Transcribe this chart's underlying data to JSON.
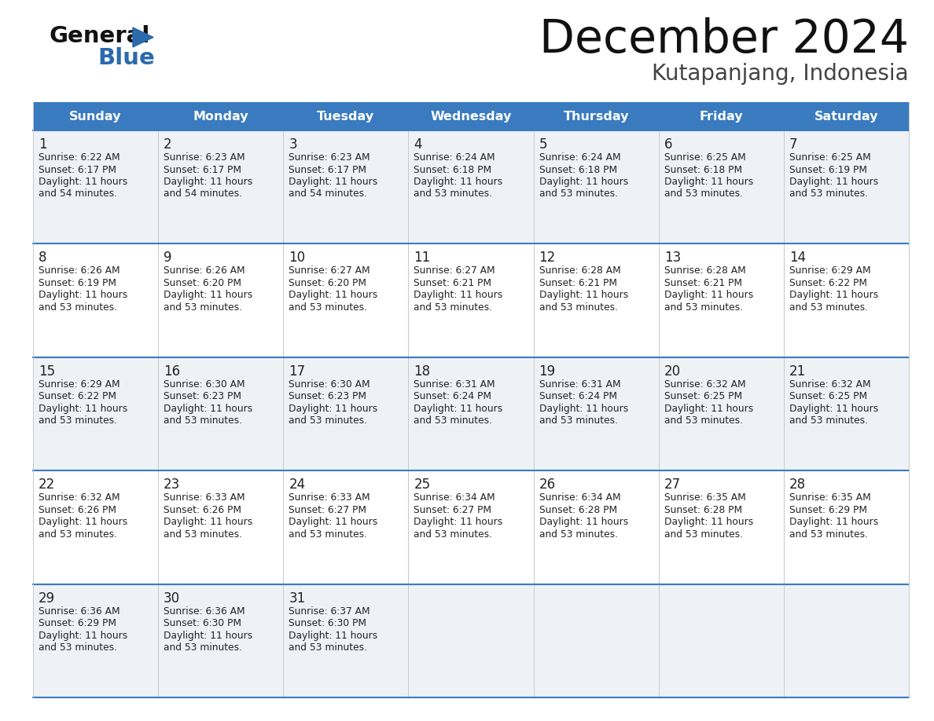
{
  "title": "December 2024",
  "subtitle": "Kutapanjang, Indonesia",
  "header_color": "#3a7bbf",
  "header_text_color": "#ffffff",
  "cell_bg_even": "#eef2f7",
  "cell_bg_odd": "#ffffff",
  "text_color": "#222222",
  "border_color": "#3a7bbf",
  "divider_color": "#cccccc",
  "days_of_week": [
    "Sunday",
    "Monday",
    "Tuesday",
    "Wednesday",
    "Thursday",
    "Friday",
    "Saturday"
  ],
  "calendar_data": [
    [
      {
        "day": "1",
        "sunrise": "6:22 AM",
        "sunset": "6:17 PM",
        "daylight_h": "11 hours",
        "daylight_m": "and 54 minutes."
      },
      {
        "day": "2",
        "sunrise": "6:23 AM",
        "sunset": "6:17 PM",
        "daylight_h": "11 hours",
        "daylight_m": "and 54 minutes."
      },
      {
        "day": "3",
        "sunrise": "6:23 AM",
        "sunset": "6:17 PM",
        "daylight_h": "11 hours",
        "daylight_m": "and 54 minutes."
      },
      {
        "day": "4",
        "sunrise": "6:24 AM",
        "sunset": "6:18 PM",
        "daylight_h": "11 hours",
        "daylight_m": "and 53 minutes."
      },
      {
        "day": "5",
        "sunrise": "6:24 AM",
        "sunset": "6:18 PM",
        "daylight_h": "11 hours",
        "daylight_m": "and 53 minutes."
      },
      {
        "day": "6",
        "sunrise": "6:25 AM",
        "sunset": "6:18 PM",
        "daylight_h": "11 hours",
        "daylight_m": "and 53 minutes."
      },
      {
        "day": "7",
        "sunrise": "6:25 AM",
        "sunset": "6:19 PM",
        "daylight_h": "11 hours",
        "daylight_m": "and 53 minutes."
      }
    ],
    [
      {
        "day": "8",
        "sunrise": "6:26 AM",
        "sunset": "6:19 PM",
        "daylight_h": "11 hours",
        "daylight_m": "and 53 minutes."
      },
      {
        "day": "9",
        "sunrise": "6:26 AM",
        "sunset": "6:20 PM",
        "daylight_h": "11 hours",
        "daylight_m": "and 53 minutes."
      },
      {
        "day": "10",
        "sunrise": "6:27 AM",
        "sunset": "6:20 PM",
        "daylight_h": "11 hours",
        "daylight_m": "and 53 minutes."
      },
      {
        "day": "11",
        "sunrise": "6:27 AM",
        "sunset": "6:21 PM",
        "daylight_h": "11 hours",
        "daylight_m": "and 53 minutes."
      },
      {
        "day": "12",
        "sunrise": "6:28 AM",
        "sunset": "6:21 PM",
        "daylight_h": "11 hours",
        "daylight_m": "and 53 minutes."
      },
      {
        "day": "13",
        "sunrise": "6:28 AM",
        "sunset": "6:21 PM",
        "daylight_h": "11 hours",
        "daylight_m": "and 53 minutes."
      },
      {
        "day": "14",
        "sunrise": "6:29 AM",
        "sunset": "6:22 PM",
        "daylight_h": "11 hours",
        "daylight_m": "and 53 minutes."
      }
    ],
    [
      {
        "day": "15",
        "sunrise": "6:29 AM",
        "sunset": "6:22 PM",
        "daylight_h": "11 hours",
        "daylight_m": "and 53 minutes."
      },
      {
        "day": "16",
        "sunrise": "6:30 AM",
        "sunset": "6:23 PM",
        "daylight_h": "11 hours",
        "daylight_m": "and 53 minutes."
      },
      {
        "day": "17",
        "sunrise": "6:30 AM",
        "sunset": "6:23 PM",
        "daylight_h": "11 hours",
        "daylight_m": "and 53 minutes."
      },
      {
        "day": "18",
        "sunrise": "6:31 AM",
        "sunset": "6:24 PM",
        "daylight_h": "11 hours",
        "daylight_m": "and 53 minutes."
      },
      {
        "day": "19",
        "sunrise": "6:31 AM",
        "sunset": "6:24 PM",
        "daylight_h": "11 hours",
        "daylight_m": "and 53 minutes."
      },
      {
        "day": "20",
        "sunrise": "6:32 AM",
        "sunset": "6:25 PM",
        "daylight_h": "11 hours",
        "daylight_m": "and 53 minutes."
      },
      {
        "day": "21",
        "sunrise": "6:32 AM",
        "sunset": "6:25 PM",
        "daylight_h": "11 hours",
        "daylight_m": "and 53 minutes."
      }
    ],
    [
      {
        "day": "22",
        "sunrise": "6:32 AM",
        "sunset": "6:26 PM",
        "daylight_h": "11 hours",
        "daylight_m": "and 53 minutes."
      },
      {
        "day": "23",
        "sunrise": "6:33 AM",
        "sunset": "6:26 PM",
        "daylight_h": "11 hours",
        "daylight_m": "and 53 minutes."
      },
      {
        "day": "24",
        "sunrise": "6:33 AM",
        "sunset": "6:27 PM",
        "daylight_h": "11 hours",
        "daylight_m": "and 53 minutes."
      },
      {
        "day": "25",
        "sunrise": "6:34 AM",
        "sunset": "6:27 PM",
        "daylight_h": "11 hours",
        "daylight_m": "and 53 minutes."
      },
      {
        "day": "26",
        "sunrise": "6:34 AM",
        "sunset": "6:28 PM",
        "daylight_h": "11 hours",
        "daylight_m": "and 53 minutes."
      },
      {
        "day": "27",
        "sunrise": "6:35 AM",
        "sunset": "6:28 PM",
        "daylight_h": "11 hours",
        "daylight_m": "and 53 minutes."
      },
      {
        "day": "28",
        "sunrise": "6:35 AM",
        "sunset": "6:29 PM",
        "daylight_h": "11 hours",
        "daylight_m": "and 53 minutes."
      }
    ],
    [
      {
        "day": "29",
        "sunrise": "6:36 AM",
        "sunset": "6:29 PM",
        "daylight_h": "11 hours",
        "daylight_m": "and 53 minutes."
      },
      {
        "day": "30",
        "sunrise": "6:36 AM",
        "sunset": "6:30 PM",
        "daylight_h": "11 hours",
        "daylight_m": "and 53 minutes."
      },
      {
        "day": "31",
        "sunrise": "6:37 AM",
        "sunset": "6:30 PM",
        "daylight_h": "11 hours",
        "daylight_m": "and 53 minutes."
      },
      null,
      null,
      null,
      null
    ]
  ]
}
